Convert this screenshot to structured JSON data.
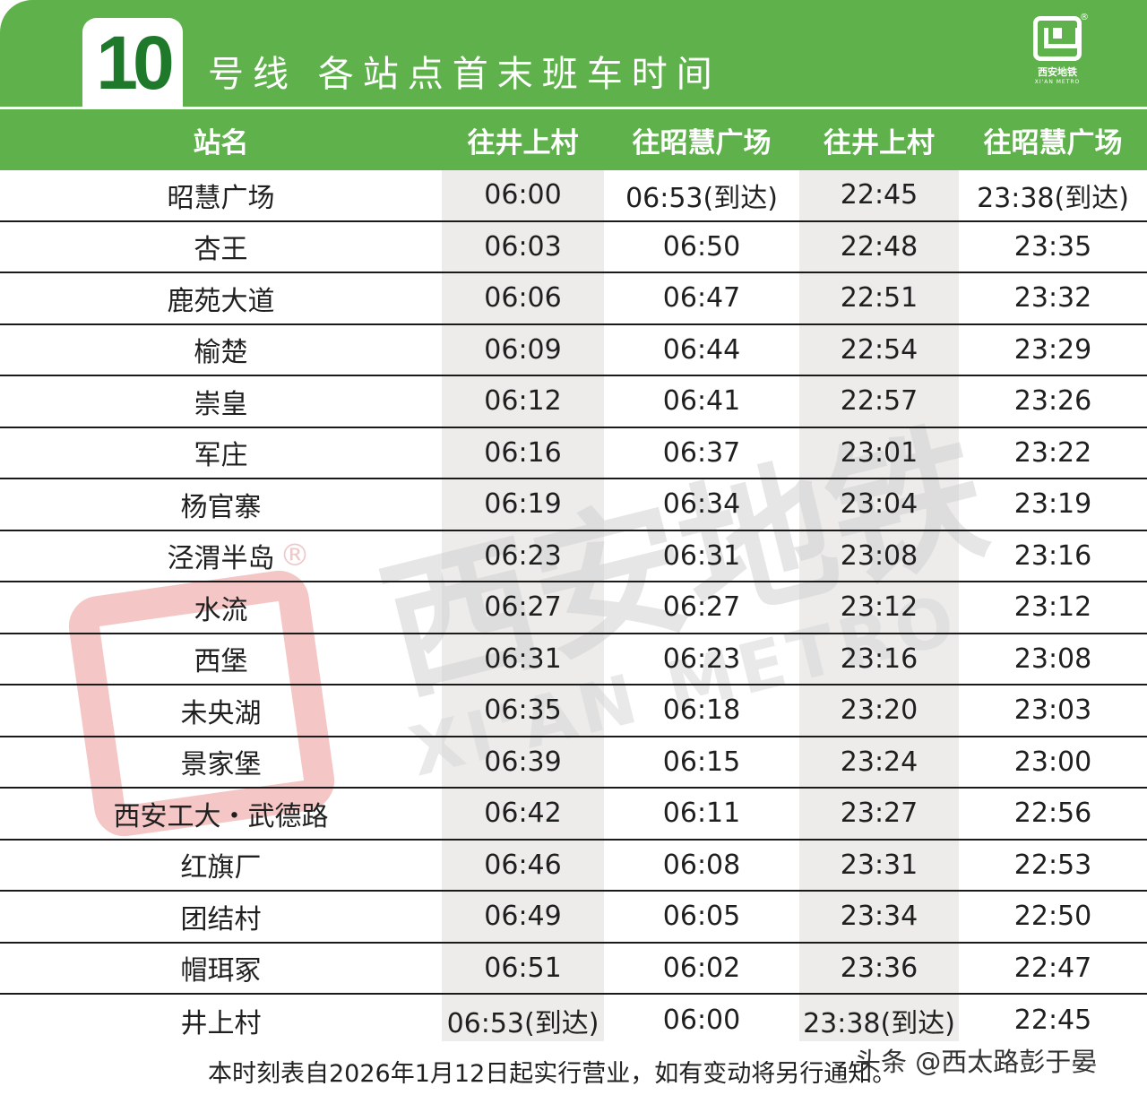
{
  "header": {
    "line_number": "10",
    "title": "号线  各站点首末班车时间",
    "logo_text": "西安地铁",
    "logo_subtext": "XI'AN METRO",
    "registered_mark": "®",
    "background_color": "#5fb24b",
    "badge_text_color": "#1e7a2a"
  },
  "columns": [
    "站名",
    "往井上村",
    "往昭慧广场",
    "往井上村",
    "往昭慧广场"
  ],
  "rows": [
    [
      "昭慧广场",
      "06:00",
      "06:53(到达)",
      "22:45",
      "23:38(到达)"
    ],
    [
      "杏王",
      "06:03",
      "06:50",
      "22:48",
      "23:35"
    ],
    [
      "鹿苑大道",
      "06:06",
      "06:47",
      "22:51",
      "23:32"
    ],
    [
      "榆楚",
      "06:09",
      "06:44",
      "22:54",
      "23:29"
    ],
    [
      "崇皇",
      "06:12",
      "06:41",
      "22:57",
      "23:26"
    ],
    [
      "军庄",
      "06:16",
      "06:37",
      "23:01",
      "23:22"
    ],
    [
      "杨官寨",
      "06:19",
      "06:34",
      "23:04",
      "23:19"
    ],
    [
      "泾渭半岛",
      "06:23",
      "06:31",
      "23:08",
      "23:16"
    ],
    [
      "水流",
      "06:27",
      "06:27",
      "23:12",
      "23:12"
    ],
    [
      "西堡",
      "06:31",
      "06:23",
      "23:16",
      "23:08"
    ],
    [
      "未央湖",
      "06:35",
      "06:18",
      "23:20",
      "23:03"
    ],
    [
      "景家堡",
      "06:39",
      "06:15",
      "23:24",
      "23:00"
    ],
    [
      "西安工大・武德路",
      "06:42",
      "06:11",
      "23:27",
      "22:56"
    ],
    [
      "红旗厂",
      "06:46",
      "06:08",
      "23:31",
      "22:53"
    ],
    [
      "团结村",
      "06:49",
      "06:05",
      "23:34",
      "22:50"
    ],
    [
      "帽珥冢",
      "06:51",
      "06:02",
      "23:36",
      "22:47"
    ],
    [
      "井上村",
      "06:53(到达)",
      "06:00",
      "23:38(到达)",
      "22:45"
    ]
  ],
  "watermark": {
    "cn": "西安地铁",
    "en": "XI'AN METRO",
    "reg": "®"
  },
  "footer": {
    "note": "本时刻表自2026年1月12日起实行营业，如有变动将另行通知。",
    "credit": "头条 @西太路彭于晏"
  }
}
